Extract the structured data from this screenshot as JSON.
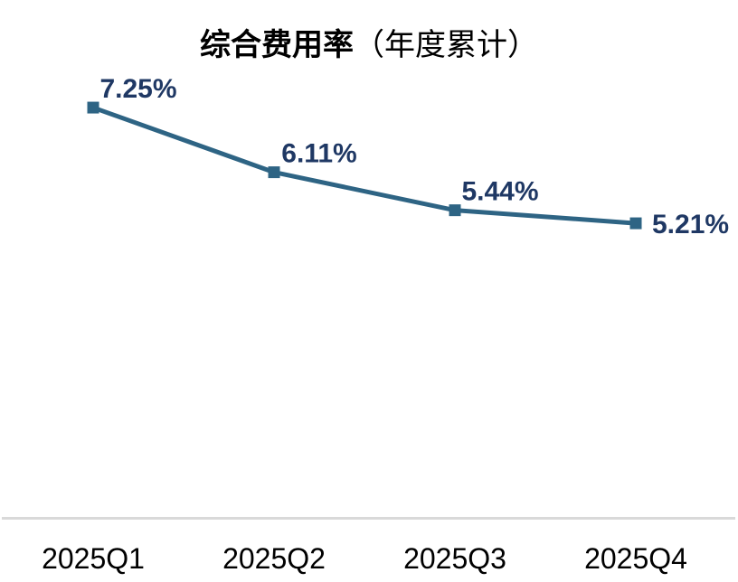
{
  "title": {
    "main": "综合费用率",
    "suffix": "（年度累计）"
  },
  "colors": {
    "line": "#2E6484",
    "marker": "#2E6484",
    "value_label": "#1F3864",
    "tick_label": "#000000",
    "axis_line": "#D9D9D9",
    "title": "#000000",
    "background": "#FFFFFF"
  },
  "chart_data": {
    "type": "line",
    "title": "综合费用率（年度累计）",
    "categories": [
      "2025Q1",
      "2025Q2",
      "2025Q3",
      "2025Q4"
    ],
    "series": [
      {
        "name": "综合费用率（年度累计）",
        "values": [
          7.25,
          6.11,
          5.44,
          5.21
        ]
      }
    ],
    "data_labels": [
      "7.25%",
      "6.11%",
      "5.44%",
      "5.21%"
    ],
    "xlabel": "",
    "ylabel": "",
    "ylim": [
      0,
      8
    ],
    "grid": false,
    "legend_position": "none",
    "marker_shape": "square",
    "y_axis_visible": false,
    "x_axis_visible": true
  }
}
